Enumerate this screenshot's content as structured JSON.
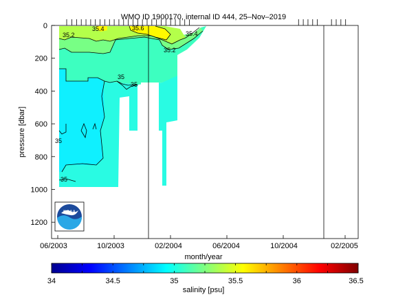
{
  "chart_data": {
    "type": "heatmap",
    "title": "WMO ID 1900170, internal ID 444, 25–Nov–2019",
    "xlabel": "month/year",
    "ylabel": "pressure [dbar]",
    "x_ticks": [
      "06/2003",
      "10/2003",
      "02/2004",
      "06/2004",
      "10/2004",
      "02/2005"
    ],
    "y_ticks": [
      "0",
      "200",
      "400",
      "600",
      "800",
      "1000",
      "1200"
    ],
    "ylim": [
      1300,
      0
    ],
    "y_reversed": true,
    "colorbar": {
      "label": "salinity [psu]",
      "ticks": [
        "34",
        "34.5",
        "35",
        "35.5",
        "36",
        "36.5"
      ],
      "range": [
        34,
        36.5
      ],
      "colormap": "jet"
    },
    "contour_labels": [
      "35.2",
      "35.4",
      "35.6",
      "35.4",
      "35.2",
      "35",
      "35",
      "35",
      "35"
    ],
    "profile_dates": [
      "2003-06-20",
      "2003-07-01",
      "2003-07-11",
      "2003-07-21",
      "2003-07-31",
      "2003-08-10",
      "2003-08-20",
      "2003-08-30",
      "2003-09-09",
      "2003-09-19",
      "2003-09-29",
      "2003-10-09",
      "2003-10-19",
      "2003-10-29",
      "2003-11-08",
      "2003-11-18",
      "2003-11-28",
      "2003-12-08",
      "2003-12-18",
      "2003-12-28",
      "2004-01-07",
      "2004-01-17",
      "2004-01-27",
      "2004-02-06",
      "2004-02-16",
      "2004-02-26",
      "2004-03-07",
      "2004-10-25",
      "2004-11-04",
      "2004-11-14",
      "2004-11-24",
      "2004-12-04",
      "2005-01-03",
      "2005-01-13",
      "2005-01-23",
      "2005-02-02"
    ],
    "vertical_markers": [
      "2003-12-29",
      "2004-12-26"
    ],
    "approx_salinity_field": {
      "x_range": [
        "2003-06-20",
        "2004-03-20"
      ],
      "layers": [
        {
          "pressure_range": [
            0,
            30
          ],
          "salinity": "35.2 to 35.6"
        },
        {
          "pressure_range": [
            30,
            150
          ],
          "salinity": "35.0 to 35.4"
        },
        {
          "pressure_range": [
            150,
            300
          ],
          "salinity": "about 35.0"
        },
        {
          "pressure_range": [
            300,
            1000
          ],
          "salinity": "34.8 to 35.0"
        }
      ]
    }
  },
  "logo": {
    "text": "NOAA",
    "colors": {
      "sky": "#1c4a9c",
      "sea": "#2aa7e6",
      "bird": "#ffffff"
    }
  },
  "colors": {
    "background": "#ffffff",
    "axis": "#000000"
  }
}
